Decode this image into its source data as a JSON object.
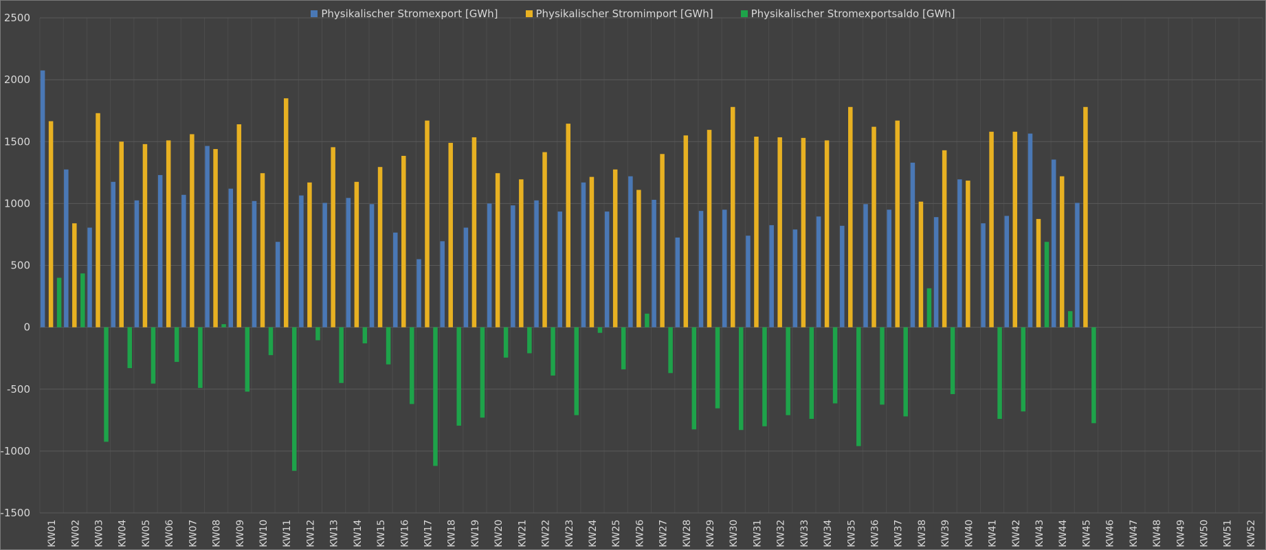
{
  "chart_data": {
    "type": "bar",
    "categories": [
      "KW01",
      "KW02",
      "KW03",
      "KW04",
      "KW05",
      "KW06",
      "KW07",
      "KW08",
      "KW09",
      "KW10",
      "KW11",
      "KW12",
      "KW13",
      "KW14",
      "KW15",
      "KW16",
      "KW17",
      "KW18",
      "KW19",
      "KW20",
      "KW21",
      "KW22",
      "KW23",
      "KW24",
      "KW25",
      "KW26",
      "KW27",
      "KW28",
      "KW29",
      "KW30",
      "KW31",
      "KW32",
      "KW33",
      "KW34",
      "KW35",
      "KW36",
      "KW37",
      "KW38",
      "KW39",
      "KW40",
      "KW41",
      "KW42",
      "KW43",
      "KW44",
      "KW45",
      "KW46",
      "KW47",
      "KW48",
      "KW49",
      "KW50",
      "KW51",
      "KW52"
    ],
    "series": [
      {
        "name": "Physikalischer Stromexport [GWh]",
        "color": "#4a78b5",
        "values": [
          2075,
          1275,
          805,
          1175,
          1025,
          1230,
          1070,
          1465,
          1120,
          1020,
          690,
          1065,
          1005,
          1045,
          995,
          765,
          550,
          695,
          805,
          1000,
          985,
          1025,
          935,
          1170,
          935,
          1220,
          1030,
          725,
          940,
          950,
          740,
          825,
          790,
          895,
          820,
          995,
          950,
          1330,
          890,
          1195,
          840,
          900,
          1565,
          1355,
          1005,
          null,
          null,
          null,
          null,
          null,
          null,
          null
        ]
      },
      {
        "name": "Physikalischer Stromimport [GWh]",
        "color": "#e8b122",
        "values": [
          1665,
          840,
          1730,
          1500,
          1480,
          1510,
          1560,
          1440,
          1640,
          1245,
          1850,
          1170,
          1455,
          1175,
          1295,
          1385,
          1670,
          1490,
          1535,
          1245,
          1195,
          1415,
          1645,
          1215,
          1275,
          1110,
          1400,
          1550,
          1595,
          1780,
          1540,
          1535,
          1530,
          1510,
          1780,
          1620,
          1670,
          1015,
          1430,
          1185,
          1580,
          1580,
          875,
          1220,
          1780,
          null,
          null,
          null,
          null,
          null,
          null,
          null
        ]
      },
      {
        "name": "Physikalischer Stromexportsaldo [GWh]",
        "color": "#1ea34a",
        "values": [
          400,
          435,
          -925,
          -330,
          -455,
          -280,
          -490,
          25,
          -520,
          -225,
          -1160,
          -105,
          -450,
          -130,
          -300,
          -620,
          -1120,
          -795,
          -730,
          -245,
          -210,
          -390,
          -710,
          -45,
          -340,
          110,
          -370,
          -825,
          -655,
          -830,
          -800,
          -710,
          -740,
          -615,
          -960,
          -625,
          -720,
          315,
          -540,
          0,
          -740,
          -680,
          690,
          130,
          -775,
          null,
          null,
          null,
          null,
          null,
          null,
          null
        ]
      }
    ],
    "ylim": [
      -1500,
      2500
    ],
    "yticks": [
      -1500,
      -1000,
      -500,
      0,
      500,
      1000,
      1500,
      2000,
      2500
    ],
    "grid": true,
    "legend_position": "top-center",
    "title": "",
    "xlabel": "",
    "ylabel": ""
  },
  "theme": {
    "background": "#404040",
    "gridline": "#5a5a5a",
    "category_line": "#4c4c4c",
    "text": "#d9d9d9"
  }
}
